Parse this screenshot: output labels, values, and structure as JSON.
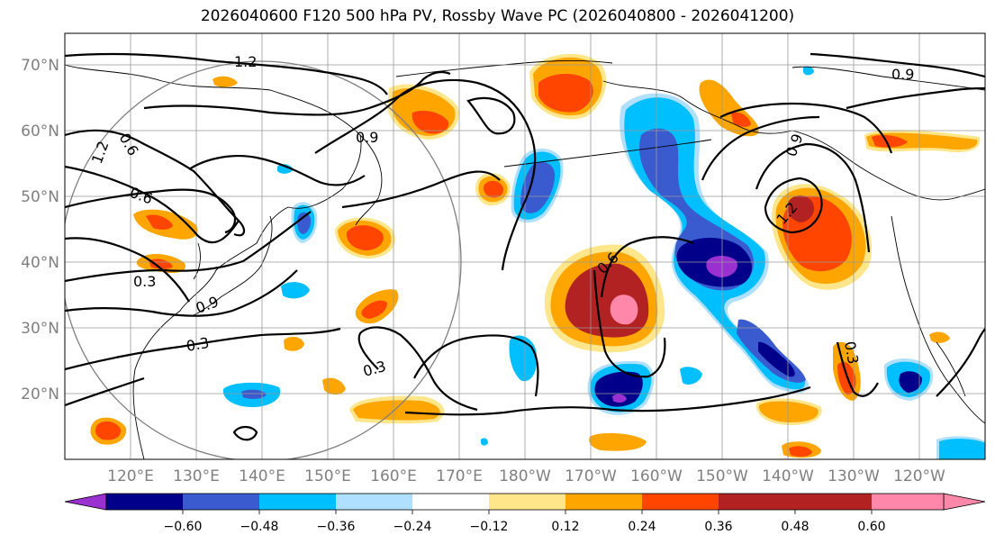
{
  "title": "2026040600 F120 500 hPa PV, Rossby Wave PC (2026040800 - 2026041200)",
  "lat_labels": [
    "70°N",
    "60°N",
    "50°N",
    "40°N",
    "30°N",
    "20°N"
  ],
  "lon_labels": [
    "120°E",
    "130°E",
    "140°E",
    "150°E",
    "160°E",
    "170°E",
    "180°W",
    "170°W",
    "160°W",
    "150°W",
    "140°W",
    "130°W",
    "120°W"
  ],
  "colorbar": {
    "colors": [
      "#9b30d0",
      "#00008b",
      "#3a5bd0",
      "#00bfff",
      "#b0e0ff",
      "#ffffff",
      "#ffe68a",
      "#ffa500",
      "#ff4500",
      "#b22222",
      "#ff88aa"
    ],
    "tick_labels": [
      "−0.60",
      "−0.48",
      "−0.36",
      "−0.24",
      "−0.12",
      "0.12",
      "0.24",
      "0.36",
      "0.48",
      "0.60"
    ]
  },
  "contour_labels": [
    "1.2",
    "0.9",
    "0.6",
    "1.2",
    "0.3",
    "0.6",
    "0.3",
    "0.3",
    "0.9",
    "0.6",
    "1.2",
    "0.9",
    "0.3",
    "0.9"
  ],
  "anomaly_colors": {
    "pos1": "#ffe68a",
    "pos2": "#ffa500",
    "pos3": "#ff4500",
    "pos4": "#b22222",
    "pos5": "#ff88aa",
    "neg1": "#b0e0ff",
    "neg2": "#00bfff",
    "neg3": "#3a5bd0",
    "neg4": "#00008b",
    "neg5": "#9b30d0"
  }
}
